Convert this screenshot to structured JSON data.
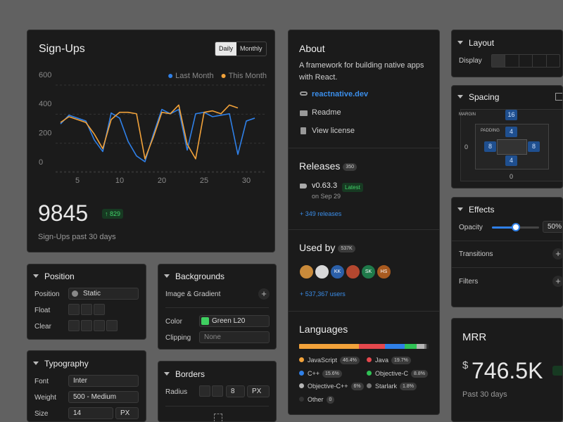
{
  "chart_data": {
    "type": "line",
    "title": "Sign-Ups",
    "toggle": [
      "Daily",
      "Monthly"
    ],
    "categories": [
      null,
      null,
      "5",
      null,
      null,
      null,
      null,
      "10",
      null,
      null,
      null,
      null,
      "20",
      null,
      null,
      null,
      null,
      "25",
      null,
      null,
      null,
      null,
      "30",
      null
    ],
    "series": [
      {
        "name": "Last Month",
        "color": "#2f80e8",
        "values": [
          270,
          330,
          310,
          290,
          160,
          80,
          345,
          310,
          150,
          50,
          10,
          200,
          370,
          340,
          370,
          90,
          340,
          350,
          320,
          330,
          340,
          60,
          290,
          310
        ]
      },
      {
        "name": "This Month",
        "color": "#f2a23a",
        "values": [
          280,
          320,
          300,
          280,
          200,
          100,
          300,
          350,
          350,
          340,
          30,
          180,
          350,
          340,
          400,
          130,
          30,
          350,
          360,
          340,
          400,
          380,
          null,
          null
        ]
      }
    ],
    "ylim": [
      0,
      600
    ],
    "yticks": [
      0,
      200,
      400,
      600
    ],
    "grid": true,
    "legend": "top-right",
    "total": "9845",
    "change": "↑ 829",
    "caption": "Sign-Ups past 30 days"
  },
  "about": {
    "title": "About",
    "description": "A framework for building native apps with React.",
    "link": "reactnative.dev",
    "readme": "Readme",
    "license": "View license"
  },
  "releases": {
    "title": "Releases",
    "count": "350",
    "version": "v0.63.3",
    "tag": "Latest",
    "date": "on Sep 29",
    "more": "+ 349 releases"
  },
  "used_by": {
    "title": "Used by",
    "count": "537K",
    "avatars": [
      "KK",
      "SK",
      "HS"
    ],
    "more": "+ 537,367 users"
  },
  "languages": {
    "title": "Languages",
    "items": [
      {
        "name": "JavaScript",
        "color": "#f2a23a",
        "value": 46.4,
        "label": "46.4%"
      },
      {
        "name": "Java",
        "color": "#e5484d",
        "value": 19.7,
        "label": "19.7%"
      },
      {
        "name": "C++",
        "color": "#2f80e8",
        "value": 15.6,
        "label": "15.6%"
      },
      {
        "name": "Objective-C",
        "color": "#30c255",
        "value": 8.8,
        "label": "8.8%"
      },
      {
        "name": "Objective-C++",
        "color": "#b5b5b5",
        "value": 6,
        "label": "6%"
      },
      {
        "name": "Starlark",
        "color": "#777777",
        "value": 1.8,
        "label": "1.8%"
      },
      {
        "name": "Other",
        "color": "#333333",
        "value": 0,
        "label": "0"
      }
    ]
  },
  "layout": {
    "title": "Layout",
    "display": "Display"
  },
  "spacing": {
    "title": "Spacing",
    "margin_label": "MARGIN",
    "margin": "16",
    "padding_label": "PADDING",
    "padding_top": "4",
    "padding_left": "8",
    "padding_right": "8",
    "padding_bottom": "4",
    "outer_left": "0",
    "outer_bottom": "0"
  },
  "effects": {
    "title": "Effects",
    "opacity_label": "Opacity",
    "opacity": {
      "value": 50,
      "label": "50%"
    },
    "transitions": "Transitions",
    "filters": "Filters"
  },
  "mrr": {
    "title": "MRR",
    "currency": "$",
    "value": "746.5K",
    "caption": "Past 30 days"
  },
  "position": {
    "title": "Position",
    "position_label": "Position",
    "position": "Static",
    "float": "Float",
    "clear": "Clear"
  },
  "backgrounds": {
    "title": "Backgrounds",
    "image": "Image & Gradient",
    "color_label": "Color",
    "color": "Green L20",
    "clipping_label": "Clipping",
    "clipping": "None"
  },
  "typography": {
    "title": "Typography",
    "font_label": "Font",
    "font": "Inter",
    "weight_label": "Weight",
    "weight": "500 - Medium",
    "size_label": "Size",
    "size": "14",
    "unit": "PX"
  },
  "borders": {
    "title": "Borders",
    "radius_label": "Radius",
    "radius": "8",
    "unit": "PX"
  }
}
